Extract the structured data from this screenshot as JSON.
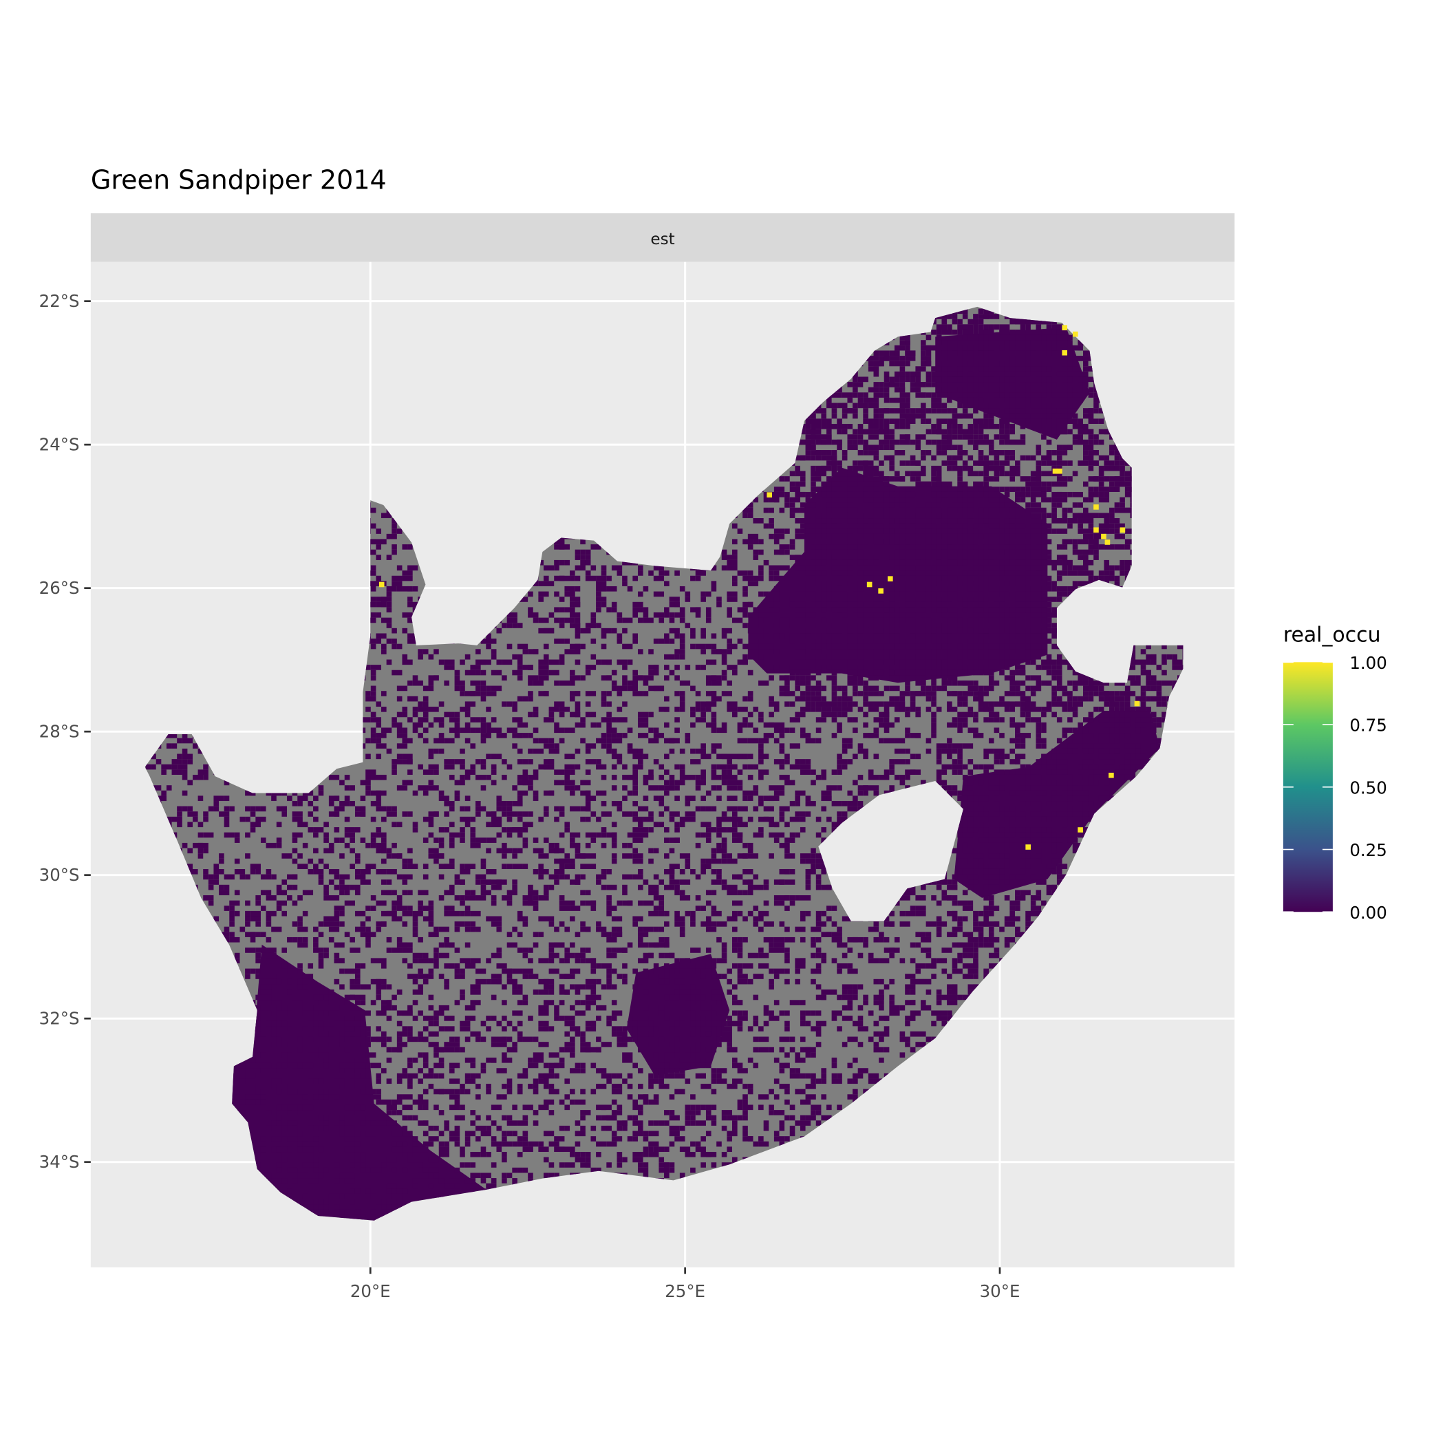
{
  "chart_data": {
    "type": "heatmap",
    "title": "Green Sandpiper 2014",
    "facet_label": "est",
    "xlabel": "",
    "ylabel": "",
    "x_ticks": [
      {
        "value": 20,
        "label": "20°E"
      },
      {
        "value": 25,
        "label": "25°E"
      },
      {
        "value": 30,
        "label": "30°E"
      }
    ],
    "y_ticks": [
      {
        "value": -22,
        "label": "22°S"
      },
      {
        "value": -24,
        "label": "24°S"
      },
      {
        "value": -26,
        "label": "26°S"
      },
      {
        "value": -28,
        "label": "28°S"
      },
      {
        "value": -30,
        "label": "30°S"
      },
      {
        "value": -32,
        "label": "32°S"
      },
      {
        "value": -34,
        "label": "34°S"
      }
    ],
    "xlim": [
      15.6,
      33.8
    ],
    "ylim": [
      -35.4,
      -21.5
    ],
    "grid": true,
    "na_color": "#7f7f7f",
    "legend": {
      "title": "real_occu",
      "placement": "right",
      "colormap": "viridis",
      "colors": [
        "#440154",
        "#3b528b",
        "#21908c",
        "#5dc863",
        "#fde725"
      ],
      "range": [
        0,
        1
      ],
      "breaks": [
        "0.00",
        "0.25",
        "0.50",
        "0.75",
        "1.00"
      ]
    },
    "occupied_cells_value_1": [
      {
        "lon": 31.03,
        "lat": -22.37
      },
      {
        "lon": 31.2,
        "lat": -22.46
      },
      {
        "lon": 31.03,
        "lat": -22.72
      },
      {
        "lon": 30.88,
        "lat": -24.37
      },
      {
        "lon": 30.95,
        "lat": -24.37
      },
      {
        "lon": 31.53,
        "lat": -24.87
      },
      {
        "lon": 31.53,
        "lat": -25.19
      },
      {
        "lon": 31.65,
        "lat": -25.28
      },
      {
        "lon": 31.71,
        "lat": -25.36
      },
      {
        "lon": 31.95,
        "lat": -25.19
      },
      {
        "lon": 26.34,
        "lat": -24.7
      },
      {
        "lon": 27.93,
        "lat": -25.95
      },
      {
        "lon": 28.11,
        "lat": -26.04
      },
      {
        "lon": 28.26,
        "lat": -25.87
      },
      {
        "lon": 20.18,
        "lat": -25.95
      },
      {
        "lon": 32.18,
        "lat": -27.61
      },
      {
        "lon": 31.77,
        "lat": -28.61
      },
      {
        "lon": 31.28,
        "lat": -29.37
      },
      {
        "lon": 30.45,
        "lat": -29.61
      }
    ],
    "other_cells": "mostly 0.00 (dark purple) or NA (grey)"
  }
}
